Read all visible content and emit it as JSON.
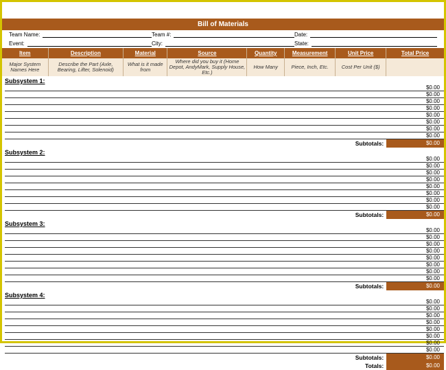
{
  "colors": {
    "accent": "#a85a1c",
    "hint_bg": "#f5e9d8",
    "border_frame": "#d4c400"
  },
  "title": "Bill of Materials",
  "info": {
    "team_name_label": "Team Name:",
    "event_label": "Event:",
    "team_num_label": "Team #:",
    "city_label": "City:",
    "date_label": "Date:",
    "state_label": "State:"
  },
  "headers": {
    "item": "Item",
    "desc": "Description",
    "mat": "Material",
    "src": "Source",
    "qty": "Quantity",
    "meas": "Measurement",
    "unit": "Unit Price",
    "tot": "Total Price"
  },
  "hints": {
    "item": "Major System Names Here",
    "desc": "Describe the Part (Axle, Bearing, Lifter, Solenoid)",
    "mat": "What is it made from",
    "src": "Where did you buy it (Home Depot, AndyMark, Supply House, Etc.)",
    "qty": "How Many",
    "meas": "Piece, Inch, Etc.",
    "unit": "Cost Per Unit ($)",
    "tot": ""
  },
  "sections": [
    {
      "name": "Subsystem 1:",
      "rows": 8
    },
    {
      "name": "Subsystem 2:",
      "rows": 8
    },
    {
      "name": "Subsystem 3:",
      "rows": 8
    },
    {
      "name": "Subsystem 4:",
      "rows": 8
    }
  ],
  "row_price": "$0.00",
  "subtotal_label": "Subtotals:",
  "subtotal_value": "$0.00",
  "totals_label": "Totals:",
  "totals_value": "$0.00"
}
